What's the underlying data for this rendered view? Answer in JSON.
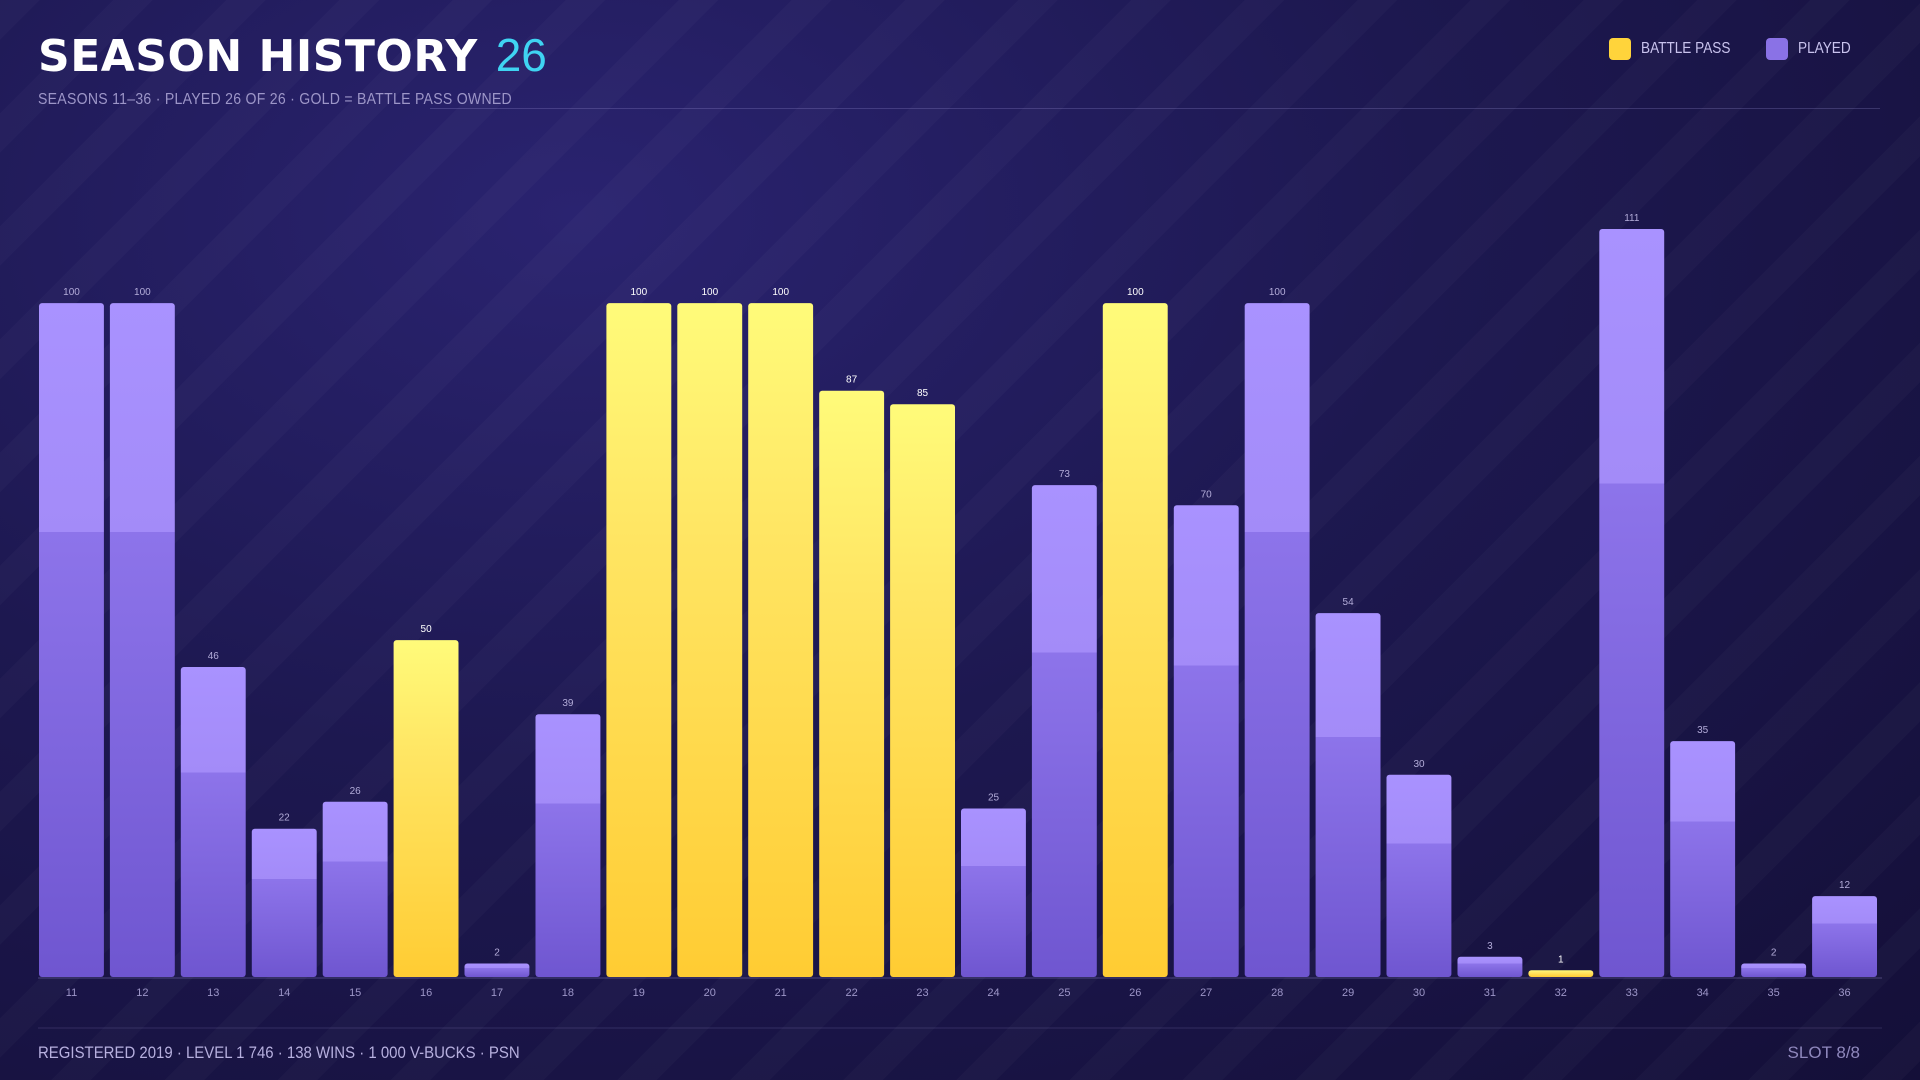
{
  "header": {
    "title": "SEASON HISTORY",
    "count": "26",
    "subtitle": "SEASONS 11–36  ·  PLAYED 26 OF 26  ·  GOLD = BATTLE PASS OWNED"
  },
  "legend": {
    "battle_pass": "BATTLE PASS",
    "played": "PLAYED"
  },
  "colors": {
    "battle_pass": "#ffd43b",
    "played": "#8a72e6",
    "accent": "#3fd4f2"
  },
  "chart_data": {
    "type": "bar",
    "categories": [
      "11",
      "12",
      "13",
      "14",
      "15",
      "16",
      "17",
      "18",
      "19",
      "20",
      "21",
      "22",
      "23",
      "24",
      "25",
      "26",
      "27",
      "28",
      "29",
      "30",
      "31",
      "32",
      "33",
      "34",
      "35",
      "36"
    ],
    "values": [
      100,
      100,
      46,
      22,
      26,
      50,
      2,
      39,
      100,
      100,
      100,
      87,
      85,
      25,
      73,
      100,
      70,
      100,
      54,
      30,
      3,
      1,
      111,
      35,
      2,
      12
    ],
    "battle_pass": [
      false,
      false,
      false,
      false,
      false,
      true,
      false,
      false,
      true,
      true,
      true,
      true,
      true,
      false,
      false,
      true,
      false,
      false,
      false,
      false,
      false,
      true,
      false,
      false,
      false,
      false
    ],
    "ylim": [
      0,
      111
    ],
    "grid": false,
    "legend_position": "top-right",
    "data_labels": true
  },
  "footer": {
    "left": "REGISTERED 2019  ·  LEVEL 1 746  ·  138 WINS  ·  1 000 V-BUCKS  ·  PSN",
    "right": "SLOT 8/8"
  }
}
